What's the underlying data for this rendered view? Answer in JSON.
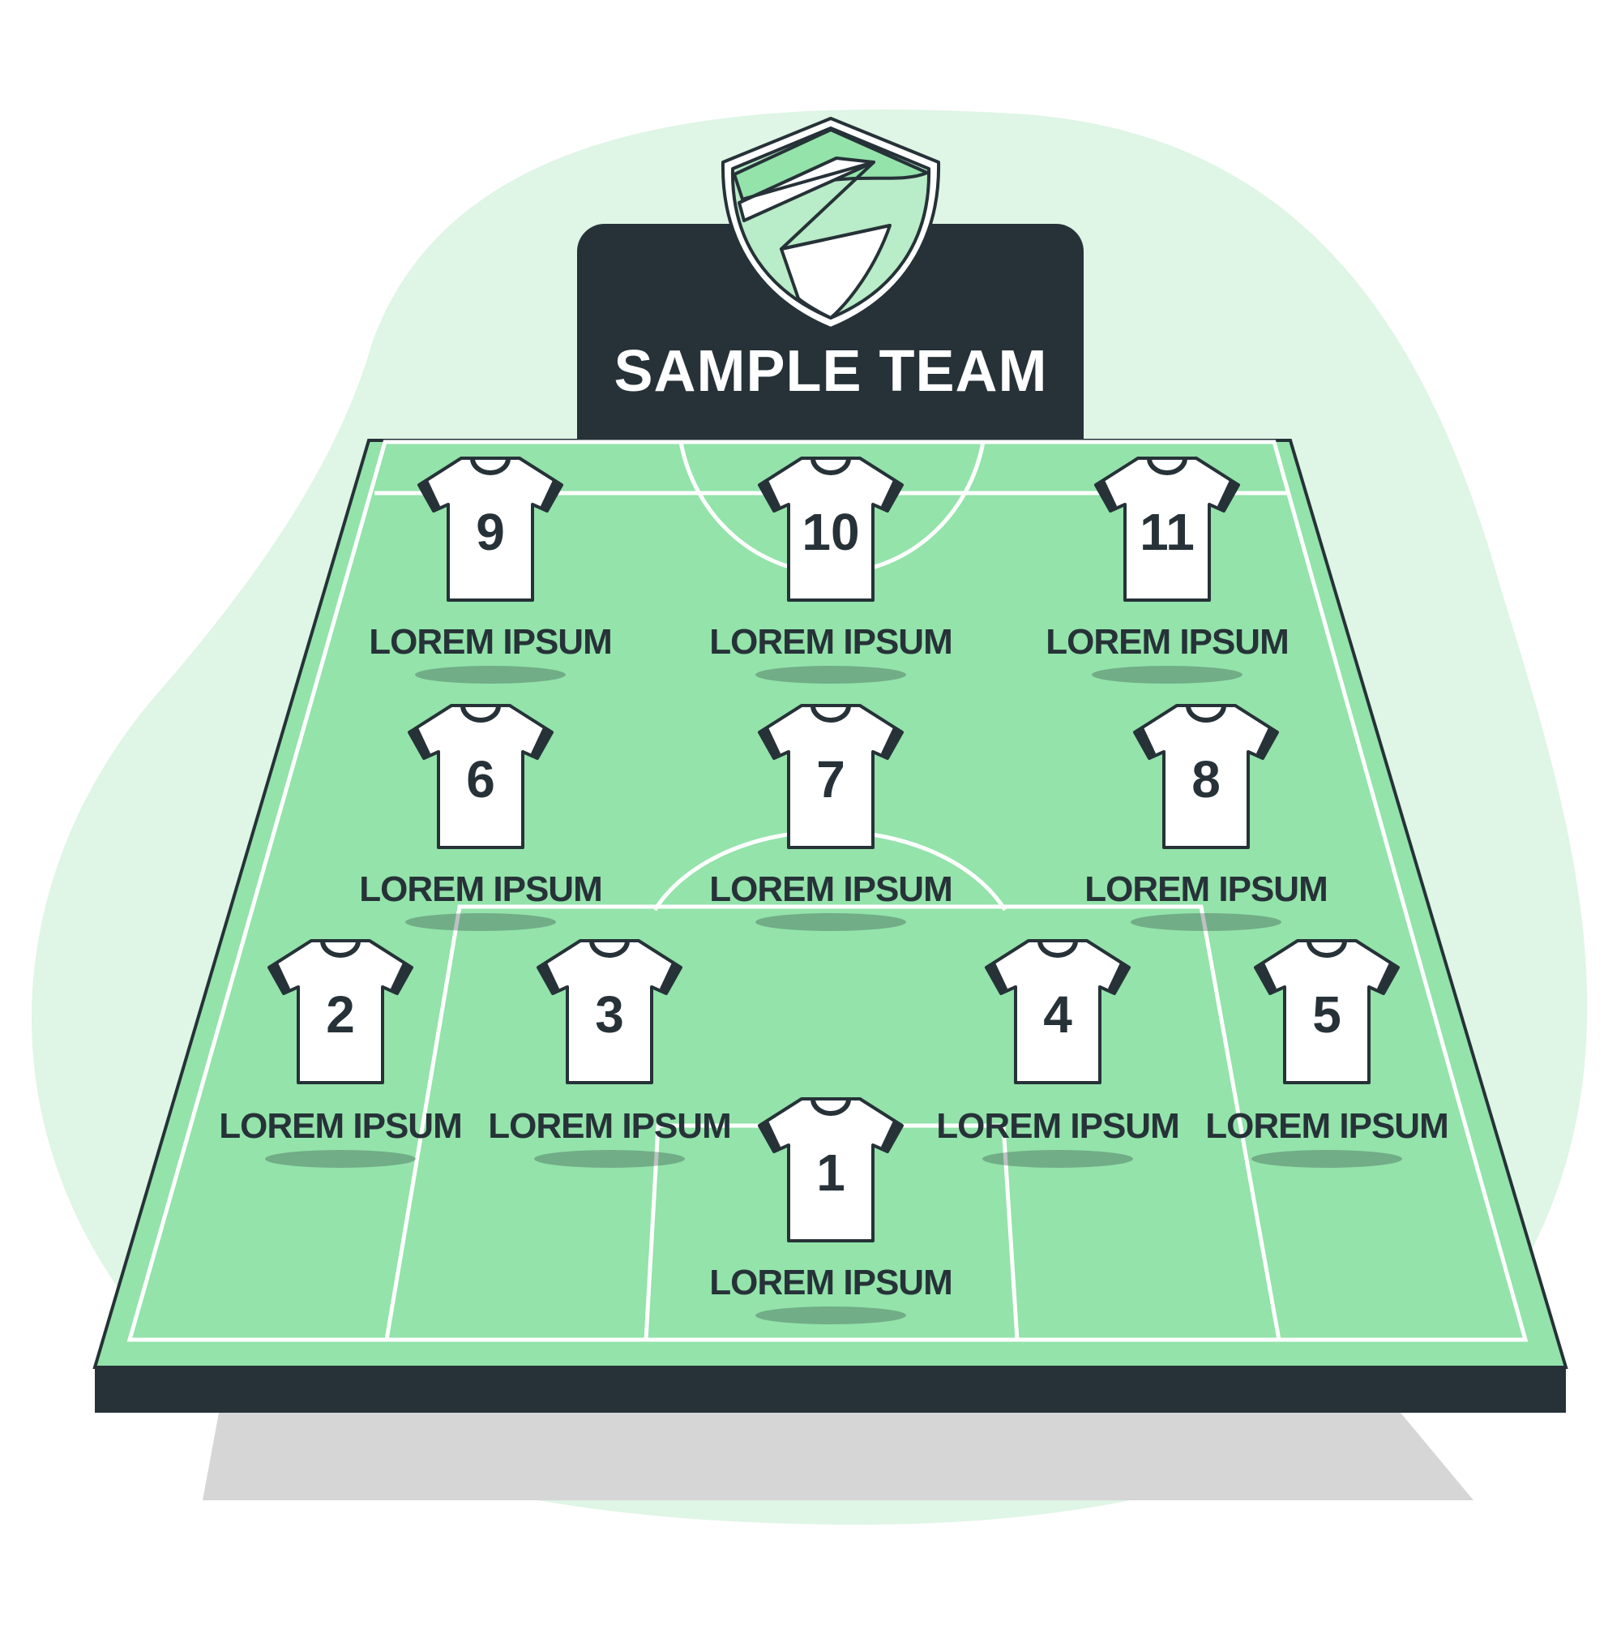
{
  "team": {
    "name": "SAMPLE TEAM",
    "crest": "shield-crest-icon"
  },
  "colors": {
    "blob": "#dff5e6",
    "pitch": "#93e3aa",
    "line": "#ffffff",
    "dark": "#263238",
    "shadow": "#d6d6d6",
    "jersey": "#ffffff",
    "crest_light": "#93e3aa",
    "crest_fill": "#b9ecc8"
  },
  "players": [
    {
      "number": "1",
      "name": "LOREM IPSUM"
    },
    {
      "number": "2",
      "name": "LOREM IPSUM"
    },
    {
      "number": "3",
      "name": "LOREM IPSUM"
    },
    {
      "number": "4",
      "name": "LOREM IPSUM"
    },
    {
      "number": "5",
      "name": "LOREM IPSUM"
    },
    {
      "number": "6",
      "name": "LOREM IPSUM"
    },
    {
      "number": "7",
      "name": "LOREM IPSUM"
    },
    {
      "number": "8",
      "name": "LOREM IPSUM"
    },
    {
      "number": "9",
      "name": "LOREM IPSUM"
    },
    {
      "number": "10",
      "name": "LOREM IPSUM"
    },
    {
      "number": "11",
      "name": "LOREM IPSUM"
    }
  ]
}
